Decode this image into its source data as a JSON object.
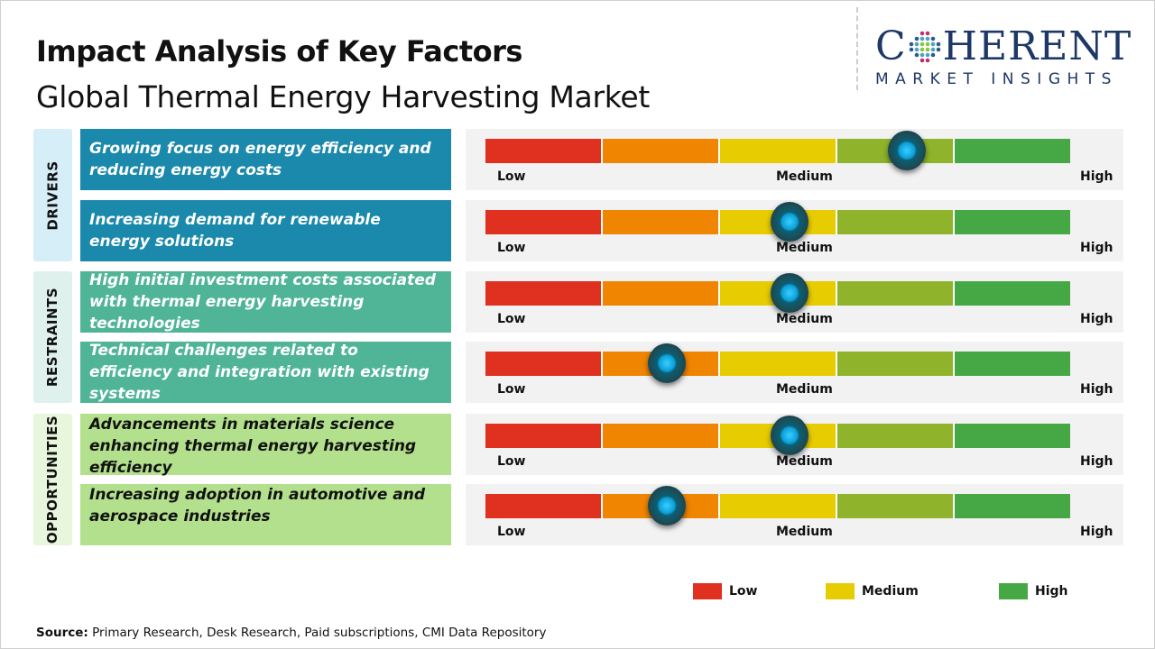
{
  "header": {
    "title": "Impact Analysis of Key Factors",
    "subtitle": "Global Thermal Energy Harvesting Market"
  },
  "logo": {
    "main_left": "C",
    "main_right": "HERENT",
    "sub": "MARKET INSIGHTS"
  },
  "colors": {
    "drivers": "#1a89ac",
    "restraints": "#4fb596",
    "opportunities": "#b3e08c",
    "low": "#e03020",
    "low_medium": "#ef8500",
    "medium": "#e6cc00",
    "medium_high": "#8fb32a",
    "high": "#45a845",
    "knob": "#1aa9e0"
  },
  "scale_labels": {
    "low": "Low",
    "medium": "Medium",
    "high": "High"
  },
  "categories": [
    {
      "label": "DRIVERS",
      "factors": [
        {
          "text": "Growing focus on energy efficiency and reducing energy costs",
          "impact": 0.72
        },
        {
          "text": "Increasing demand for renewable energy solutions",
          "impact": 0.52
        }
      ]
    },
    {
      "label": "RESTRAINTS",
      "factors": [
        {
          "text": "High initial investment costs associated with thermal energy harvesting technologies",
          "impact": 0.52
        },
        {
          "text": "Technical challenges related to efficiency and integration with existing systems",
          "impact": 0.31
        }
      ]
    },
    {
      "label": "OPPORTUNITIES",
      "factors": [
        {
          "text": "Advancements in materials science enhancing thermal energy harvesting efficiency",
          "impact": 0.52
        },
        {
          "text": "Increasing adoption in automotive and aerospace industries",
          "impact": 0.31
        }
      ]
    }
  ],
  "legend": [
    {
      "label": "Low",
      "color": "#e03020"
    },
    {
      "label": "Medium",
      "color": "#e6cc00"
    },
    {
      "label": "High",
      "color": "#45a845"
    }
  ],
  "source": {
    "label": "Source:",
    "text": " Primary Research, Desk Research, Paid subscriptions, CMI Data Repository"
  }
}
